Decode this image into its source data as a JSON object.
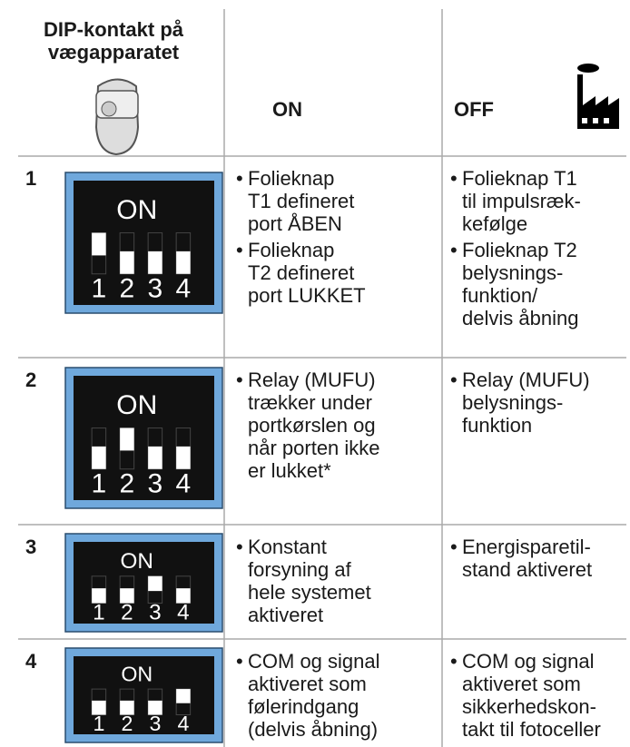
{
  "header": {
    "col1": [
      "DIP-kontakt på",
      "vægapparatet"
    ],
    "on": "ON",
    "off": "OFF"
  },
  "dip": {
    "label": "ON",
    "numbers": [
      "1",
      "2",
      "3",
      "4"
    ]
  },
  "rows": [
    {
      "num": "1",
      "on": [
        [
          "Folieknap",
          "T1 defineret",
          "port ÅBEN"
        ],
        [
          "Folieknap",
          "T2 defineret",
          "port LUKKET"
        ]
      ],
      "off": [
        [
          "Folieknap T1",
          "til impulsræk-",
          "kefølge"
        ],
        [
          "Folieknap T2",
          "belysnings-",
          "funktion/",
          "delvis åbning"
        ]
      ]
    },
    {
      "num": "2",
      "on": [
        [
          "Relay (MUFU)",
          "trækker under",
          "portkørslen og",
          "når porten ikke",
          "er lukket*"
        ]
      ],
      "off": [
        [
          "Relay (MUFU)",
          "belysnings-",
          "funktion"
        ]
      ]
    },
    {
      "num": "3",
      "on": [
        [
          "Konstant",
          "forsyning af",
          "hele systemet",
          "aktiveret"
        ]
      ],
      "off": [
        [
          "Energisparetil-",
          "stand aktiveret"
        ]
      ]
    },
    {
      "num": "4",
      "on": [
        [
          "COM og signal",
          "aktiveret som",
          "følerindgang",
          "(delvis åbning)"
        ]
      ],
      "off": [
        [
          "COM og signal",
          "aktiveret som",
          "sikkerhedskon-",
          "takt til fotoceller"
        ]
      ]
    }
  ]
}
